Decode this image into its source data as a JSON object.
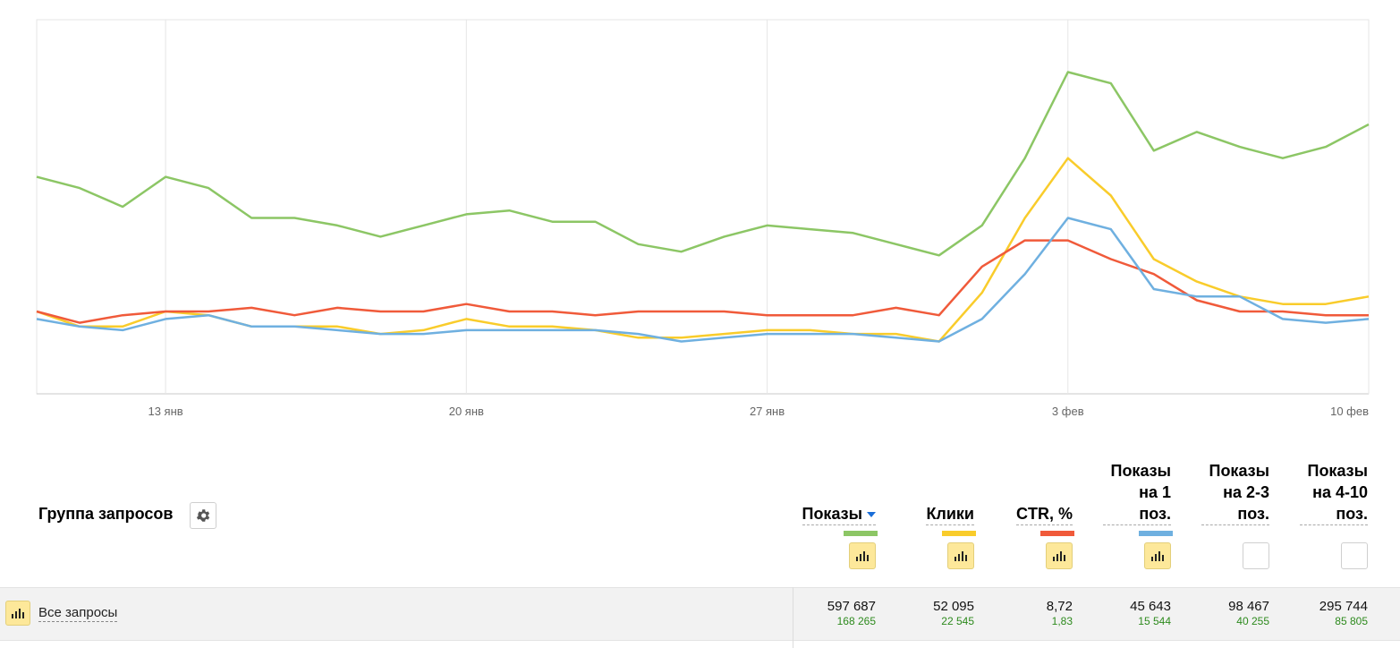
{
  "chart_data": {
    "type": "line",
    "x": [
      "10 янв",
      "11 янв",
      "12 янв",
      "13 янв",
      "14 янв",
      "15 янв",
      "16 янв",
      "17 янв",
      "18 янв",
      "19 янв",
      "20 янв",
      "21 янв",
      "22 янв",
      "23 янв",
      "24 янв",
      "25 янв",
      "26 янв",
      "27 янв",
      "28 янв",
      "29 янв",
      "30 янв",
      "31 янв",
      "1 фев",
      "2 фев",
      "3 фев",
      "4 фев",
      "5 фев",
      "6 фев",
      "7 фев",
      "8 фев",
      "9 фев",
      "10 фев"
    ],
    "x_tick_labels": [
      "13 янв",
      "20 янв",
      "27 янв",
      "3 фев",
      "10 фев"
    ],
    "x_tick_index": [
      3,
      10,
      17,
      24,
      31
    ],
    "ylim": [
      0,
      100
    ],
    "grid": true,
    "series": [
      {
        "name": "Показы",
        "color": "#8cc665",
        "values": [
          58,
          55,
          50,
          58,
          55,
          47,
          47,
          45,
          42,
          45,
          48,
          49,
          46,
          46,
          40,
          38,
          42,
          45,
          44,
          43,
          40,
          37,
          45,
          63,
          86,
          83,
          65,
          70,
          66,
          63,
          66,
          72
        ]
      },
      {
        "name": "Клики",
        "color": "#f9cc2b",
        "values": [
          22,
          18,
          18,
          22,
          21,
          18,
          18,
          18,
          16,
          17,
          20,
          18,
          18,
          17,
          15,
          15,
          16,
          17,
          17,
          16,
          16,
          14,
          27,
          47,
          63,
          53,
          36,
          30,
          26,
          24,
          24,
          26
        ]
      },
      {
        "name": "CTR, %",
        "color": "#f05a3a",
        "values": [
          22,
          19,
          21,
          22,
          22,
          23,
          21,
          23,
          22,
          22,
          24,
          22,
          22,
          21,
          22,
          22,
          22,
          21,
          21,
          21,
          23,
          21,
          34,
          41,
          41,
          36,
          32,
          25,
          22,
          22,
          21,
          21
        ]
      },
      {
        "name": "Показы на 1 поз.",
        "color": "#6fb0e0",
        "values": [
          20,
          18,
          17,
          20,
          21,
          18,
          18,
          17,
          16,
          16,
          17,
          17,
          17,
          17,
          16,
          14,
          15,
          16,
          16,
          16,
          15,
          14,
          20,
          32,
          47,
          44,
          28,
          26,
          26,
          20,
          19,
          20
        ]
      }
    ]
  },
  "table": {
    "group_title": "Группа запросов",
    "settings_icon": "gear-icon",
    "columns": [
      {
        "id": "shows",
        "lines": [
          "Показы"
        ],
        "sort": "desc",
        "color": "#8cc665",
        "chart_on": true
      },
      {
        "id": "clicks",
        "lines": [
          "Клики"
        ],
        "color": "#f9cc2b",
        "chart_on": true
      },
      {
        "id": "ctr",
        "lines": [
          "CTR, %"
        ],
        "color": "#f05a3a",
        "chart_on": true
      },
      {
        "id": "pos1",
        "lines": [
          "Показы",
          "на 1",
          "поз."
        ],
        "color": "#6fb0e0",
        "chart_on": true
      },
      {
        "id": "pos23",
        "lines": [
          "Показы",
          "на 2-3",
          "поз."
        ],
        "color": null,
        "chart_on": false
      },
      {
        "id": "pos410",
        "lines": [
          "Показы",
          "на 4-10",
          "поз."
        ],
        "color": null,
        "chart_on": false
      }
    ],
    "rows": [
      {
        "label": "Все запросы",
        "icon": "bar-chart-icon",
        "values": [
          {
            "main": "597 687",
            "sub": "168 265"
          },
          {
            "main": "52 095",
            "sub": "22 545"
          },
          {
            "main": "8,72",
            "sub": "1,83"
          },
          {
            "main": "45 643",
            "sub": "15 544"
          },
          {
            "main": "98 467",
            "sub": "40 255"
          },
          {
            "main": "295 744",
            "sub": "85 805"
          }
        ]
      }
    ]
  }
}
